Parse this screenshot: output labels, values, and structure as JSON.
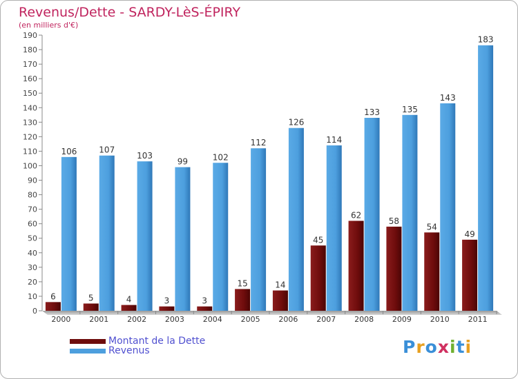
{
  "title": "Revenus/Dette - SARDY-LèS-ÉPIRY",
  "subtitle": "(en milliers d'€)",
  "chart_data": {
    "type": "bar",
    "categories": [
      "2000",
      "2001",
      "2002",
      "2003",
      "2004",
      "2005",
      "2006",
      "2007",
      "2008",
      "2009",
      "2010",
      "2011"
    ],
    "series": [
      {
        "name": "Montant de la Dette",
        "color": "#6e0c0c",
        "values": [
          6,
          5,
          4,
          3,
          3,
          15,
          14,
          45,
          62,
          58,
          54,
          49
        ]
      },
      {
        "name": "Revenus",
        "color": "#4d9fde",
        "values": [
          106,
          107,
          103,
          99,
          102,
          112,
          126,
          114,
          133,
          135,
          143,
          183
        ]
      }
    ],
    "ylim": [
      0,
      190
    ],
    "ytick_step": 10,
    "grid": false,
    "legend": "bottom-left"
  },
  "logo": {
    "text": "Proxiti",
    "letters": [
      {
        "ch": "P",
        "color": "#3a8fd8"
      },
      {
        "ch": "r",
        "color": "#e8a020"
      },
      {
        "ch": "o",
        "color": "#3a8fd8"
      },
      {
        "ch": "x",
        "color": "#d03060"
      },
      {
        "ch": "i",
        "color": "#70b030"
      },
      {
        "ch": "t",
        "color": "#3a8fd8"
      },
      {
        "ch": "i",
        "color": "#e8a020"
      }
    ]
  }
}
